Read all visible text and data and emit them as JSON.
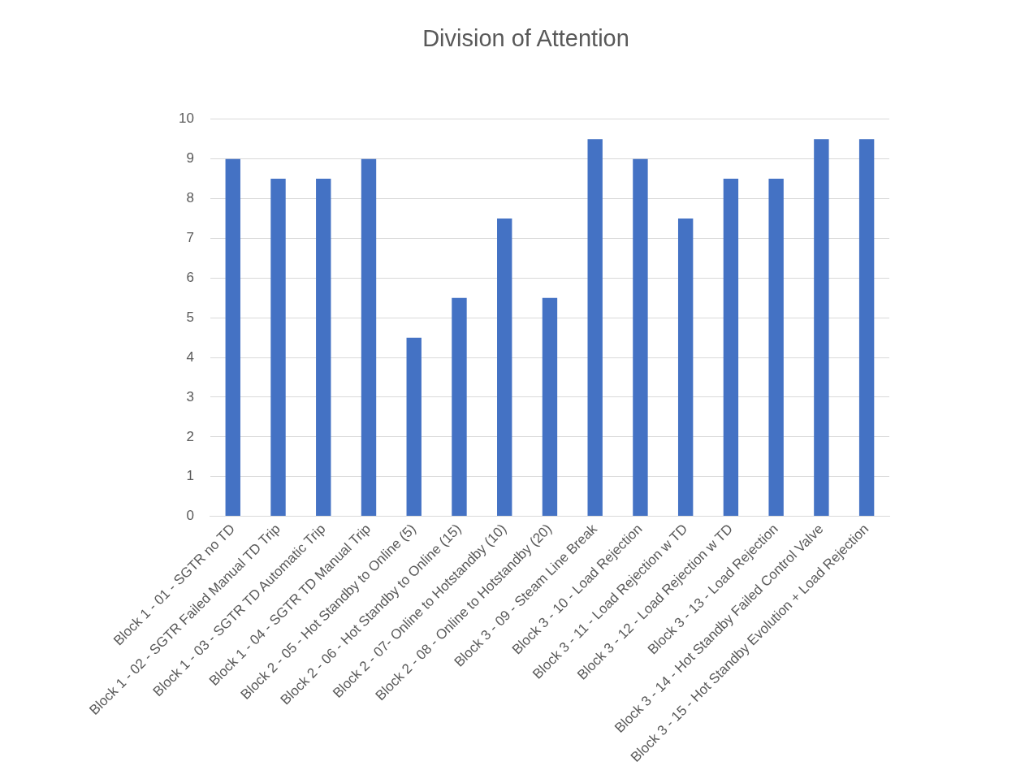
{
  "chart_data": {
    "type": "bar",
    "title": "Division of Attention",
    "categories": [
      "Block 1 - 01 - SGTR no TD",
      "Block 1 - 02 - SGTR Failed Manual TD Trip",
      "Block 1 - 03 - SGTR TD Automatic Trip",
      "Block 1 - 04 - SGTR TD Manual Trip",
      "Block 2 - 05 - Hot Standby to Online (5)",
      "Block 2 - 06 - Hot Standby to Online (15)",
      "Block 2 - 07- Online to Hotstandby (10)",
      "Block 2 - 08 - Online to Hotstandby (20)",
      "Block 3 - 09 - Steam Line Break",
      "Block 3 - 10 - Load Rejection",
      "Block 3 - 11 - Load Rejection w TD",
      "Block 3 - 12 - Load Rejection w TD",
      "Block 3 - 13 - Load Rejection",
      "Block 3 - 14 - Hot Standby Failed Control Valve",
      "Block 3 - 15 - Hot Standby Evolution + Load Rejection"
    ],
    "values": [
      9,
      8.5,
      8.5,
      9,
      4.5,
      5.5,
      7.5,
      5.5,
      9.5,
      9,
      7.5,
      8.5,
      8.5,
      9.5,
      9.5
    ],
    "color": "#4472c4",
    "ylim": [
      0,
      10
    ],
    "yticks": [
      0,
      1,
      2,
      3,
      4,
      5,
      6,
      7,
      8,
      9,
      10
    ],
    "grid": "y",
    "legend": false
  }
}
